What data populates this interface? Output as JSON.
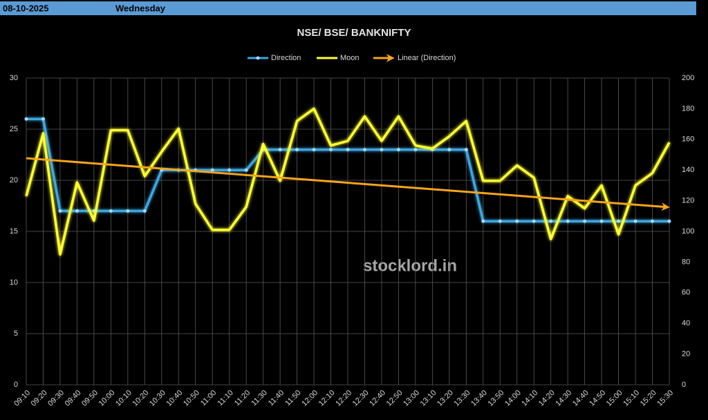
{
  "header": {
    "date": "08-10-2025",
    "day": "Wednesday"
  },
  "chart_data": {
    "type": "line",
    "title": "NSE/ BSE/ BANKNIFTY",
    "watermark": "stocklord.in",
    "categories": [
      "09:10",
      "09:20",
      "09:30",
      "09:40",
      "09:50",
      "10:00",
      "10:10",
      "10:20",
      "10:30",
      "10:40",
      "10:50",
      "11:00",
      "11:10",
      "11:20",
      "11:30",
      "11:40",
      "11:50",
      "12:00",
      "12:10",
      "12:20",
      "12:30",
      "12:40",
      "12:50",
      "13:00",
      "13:10",
      "13:20",
      "13:30",
      "13:40",
      "13:50",
      "14:00",
      "14:10",
      "14:20",
      "14:30",
      "14:40",
      "14:50",
      "15:00",
      "15:10",
      "15:20",
      "15:30"
    ],
    "series": [
      {
        "name": "Direction",
        "color": "#3ea6e0",
        "values": [
          26,
          26,
          17,
          17,
          17,
          17,
          17,
          17,
          21,
          21,
          21,
          21,
          21,
          21,
          23,
          23,
          23,
          23,
          23,
          23,
          23,
          23,
          23,
          23,
          23,
          23,
          23,
          16,
          16,
          16,
          16,
          16,
          16,
          16,
          16,
          16,
          16,
          16,
          16
        ]
      },
      {
        "name": "Moon",
        "color": "#ffff33",
        "axis": "y2",
        "values": [
          123,
          164,
          85,
          132,
          107,
          166,
          166,
          136,
          152,
          167,
          118,
          101,
          101,
          116,
          157,
          133,
          172,
          180,
          156,
          159,
          175,
          159,
          175,
          156,
          154,
          162,
          172,
          133,
          133,
          143,
          135,
          95,
          123,
          115,
          130,
          98,
          130,
          138,
          158
        ]
      }
    ],
    "trendline": {
      "name": "Linear (Direction)",
      "color": "#f7a51c"
    },
    "ylim": [
      0,
      30
    ],
    "yticks": [
      0,
      5,
      10,
      15,
      20,
      25,
      30
    ],
    "y2lim": [
      0,
      200
    ],
    "y2ticks": [
      0,
      20,
      40,
      60,
      80,
      100,
      120,
      140,
      160,
      180,
      200
    ],
    "grid": true
  }
}
